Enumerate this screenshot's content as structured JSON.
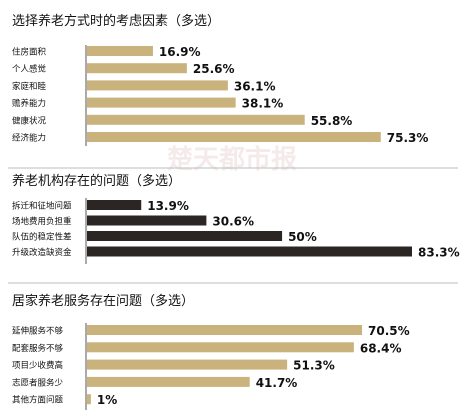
{
  "chart_data": [
    {
      "type": "bar",
      "orientation": "horizontal",
      "title": "选择养老方式时的考虑因素（多选）",
      "unit": "%",
      "color": "#c9b27c",
      "categories": [
        "住房面积",
        "个人感觉",
        "家庭和睦",
        "赡养能力",
        "健康状况",
        "经济能力"
      ],
      "values": [
        16.9,
        25.6,
        36.1,
        38.1,
        55.8,
        75.3
      ],
      "labels": [
        "16.9%",
        "25.6%",
        "36.1%",
        "38.1%",
        "55.8%",
        "75.3%"
      ]
    },
    {
      "type": "bar",
      "orientation": "horizontal",
      "title": "养老机构存在的问题（多选）",
      "unit": "%",
      "color": "#2b2523",
      "categories": [
        "拆迁和征地问题",
        "场地费用负担重",
        "队伍的稳定性差",
        "升级改造缺资金"
      ],
      "values": [
        13.9,
        30.6,
        50,
        83.3
      ],
      "labels": [
        "13.9%",
        "30.6%",
        "50%",
        "83.3%"
      ]
    },
    {
      "type": "bar",
      "orientation": "horizontal",
      "title": "居家养老服务存在问题（多选）",
      "unit": "%",
      "color": "#c9b27c",
      "categories": [
        "延伸服务不够",
        "配套服务不够",
        "项目少收费高",
        "志愿者服务少",
        "其他方面问题"
      ],
      "values": [
        70.5,
        68.4,
        51.3,
        41.7,
        1
      ],
      "labels": [
        "70.5%",
        "68.4%",
        "51.3%",
        "41.7%",
        "1%"
      ]
    }
  ],
  "watermark": "楚天都市报"
}
